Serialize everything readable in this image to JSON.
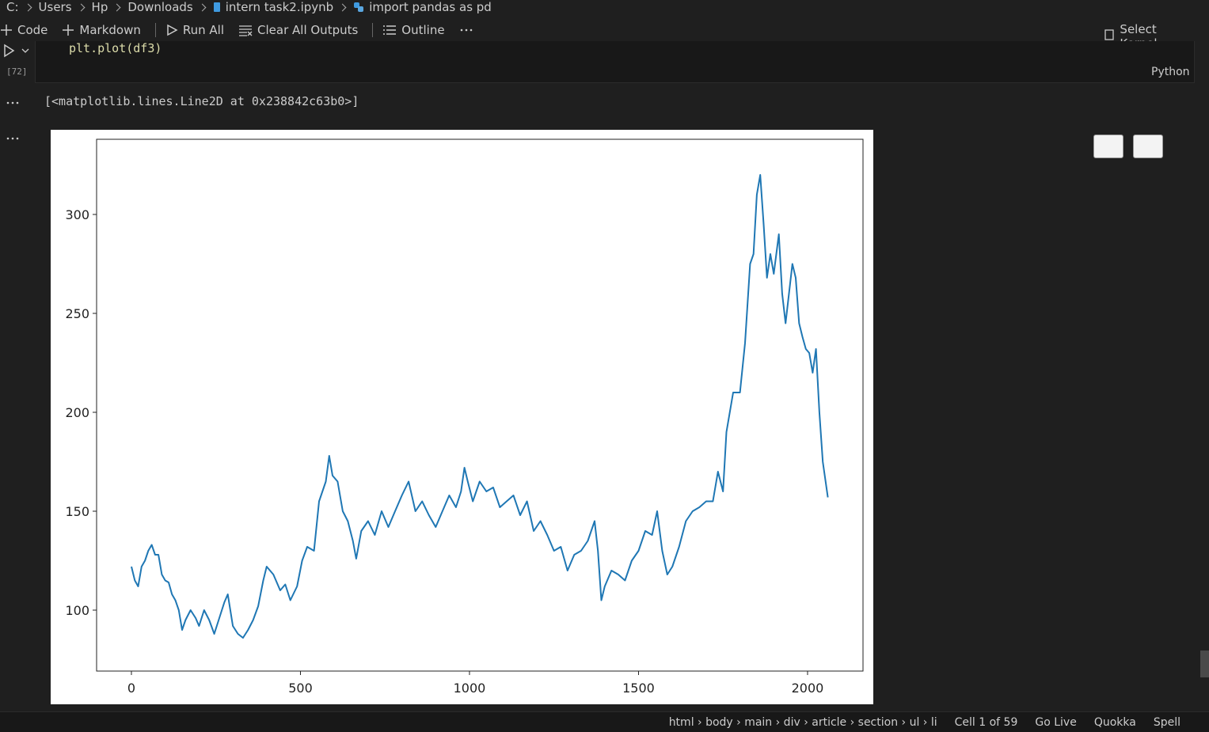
{
  "breadcrumb": [
    "C:",
    "Users",
    "Hp",
    "Downloads",
    "intern task2.ipynb",
    "import pandas as pd"
  ],
  "toolbar": {
    "code": "Code",
    "markdown": "Markdown",
    "run_all": "Run All",
    "clear": "Clear All Outputs",
    "outline": "Outline",
    "kernel": "Select Kernel"
  },
  "cell": {
    "code": "plt.plot(df3)",
    "count": "[72]",
    "language": "Python",
    "output": "[<matplotlib.lines.Line2D at 0x238842c63b0>]"
  },
  "status_bar": {
    "path": "html › body › main › div › article › section › ul › li",
    "cell": "Cell 1 of 59",
    "go_live": "Go Live",
    "quokka": "Quokka",
    "spell": "Spell"
  },
  "chart_data": {
    "type": "line",
    "x": [
      0,
      10,
      20,
      30,
      40,
      50,
      60,
      70,
      80,
      90,
      100,
      110,
      120,
      130,
      140,
      150,
      160,
      175,
      190,
      200,
      215,
      230,
      245,
      260,
      275,
      285,
      300,
      315,
      330,
      345,
      360,
      375,
      390,
      400,
      420,
      440,
      455,
      470,
      490,
      505,
      520,
      540,
      555,
      575,
      585,
      595,
      610,
      625,
      640,
      655,
      665,
      680,
      700,
      720,
      740,
      760,
      780,
      800,
      820,
      840,
      860,
      880,
      900,
      920,
      940,
      960,
      975,
      985,
      995,
      1010,
      1030,
      1050,
      1070,
      1090,
      1110,
      1130,
      1150,
      1170,
      1190,
      1210,
      1230,
      1250,
      1270,
      1290,
      1310,
      1330,
      1350,
      1370,
      1380,
      1390,
      1400,
      1420,
      1440,
      1460,
      1480,
      1500,
      1520,
      1540,
      1555,
      1570,
      1585,
      1600,
      1620,
      1640,
      1660,
      1680,
      1700,
      1720,
      1735,
      1750,
      1760,
      1780,
      1800,
      1815,
      1830,
      1840,
      1850,
      1860,
      1870,
      1880,
      1890,
      1900,
      1915,
      1925,
      1935,
      1945,
      1955,
      1965,
      1975,
      1985,
      1995,
      2005,
      2015,
      2025,
      2035,
      2045,
      2060
    ],
    "series": [
      {
        "color": "#1f77b4",
        "values": [
          122,
          115,
          112,
          122,
          125,
          130,
          133,
          128,
          128,
          118,
          115,
          114,
          108,
          105,
          100,
          90,
          95,
          100,
          96,
          92,
          100,
          95,
          88,
          96,
          104,
          108,
          92,
          88,
          86,
          90,
          95,
          102,
          115,
          122,
          118,
          110,
          113,
          105,
          112,
          125,
          132,
          130,
          155,
          165,
          178,
          168,
          165,
          150,
          145,
          135,
          126,
          140,
          145,
          138,
          150,
          142,
          150,
          158,
          165,
          150,
          155,
          148,
          142,
          150,
          158,
          152,
          160,
          172,
          165,
          155,
          165,
          160,
          162,
          152,
          155,
          158,
          148,
          155,
          140,
          145,
          138,
          130,
          132,
          120,
          128,
          130,
          135,
          145,
          130,
          105,
          112,
          120,
          118,
          115,
          125,
          130,
          140,
          138,
          150,
          130,
          118,
          122,
          132,
          145,
          150,
          152,
          155,
          155,
          170,
          160,
          190,
          210,
          210,
          235,
          275,
          280,
          310,
          320,
          295,
          268,
          280,
          270,
          290,
          260,
          245,
          260,
          275,
          268,
          245,
          238,
          232,
          230,
          220,
          232,
          200,
          175,
          157
        ]
      }
    ],
    "xlim": [
      -103,
      2164
    ],
    "ylim": [
      69.2,
      338
    ],
    "xticks": [
      0,
      500,
      1000,
      1500,
      2000
    ],
    "yticks": [
      100,
      150,
      200,
      250,
      300
    ]
  }
}
